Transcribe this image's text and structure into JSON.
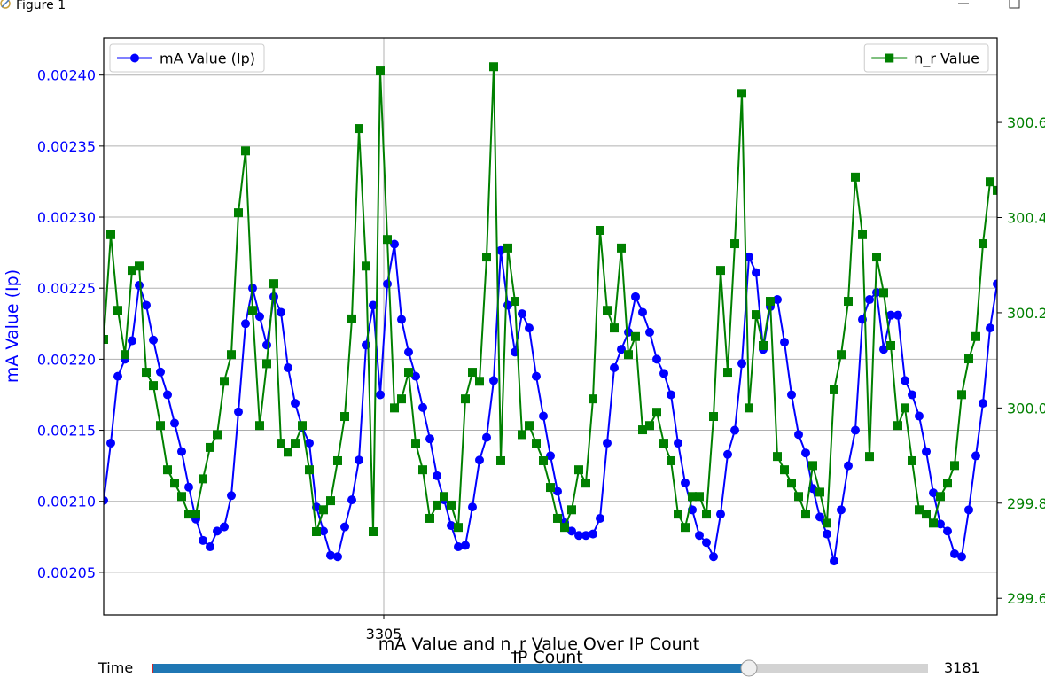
{
  "window": {
    "title": "Figure 1"
  },
  "chart_data": {
    "type": "line",
    "title": "mA Value and n_r Value Over IP Count",
    "xlabel": "IP Count",
    "ylabel": "mA Value (Ip)",
    "x": [
      3226,
      3228,
      3230,
      3232,
      3234,
      3236,
      3238,
      3240,
      3242,
      3244,
      3246,
      3248,
      3250,
      3252,
      3254,
      3256,
      3258,
      3260,
      3262,
      3264,
      3266,
      3268,
      3270,
      3272,
      3274,
      3276,
      3278,
      3280,
      3282,
      3284,
      3286,
      3288,
      3290,
      3292,
      3294,
      3296,
      3298,
      3300,
      3302,
      3304,
      3306,
      3308,
      3310,
      3312,
      3314,
      3316,
      3318,
      3320,
      3322,
      3324,
      3326,
      3328,
      3330,
      3332,
      3334,
      3336,
      3338,
      3340,
      3342,
      3344,
      3346,
      3348,
      3350,
      3352,
      3354,
      3356,
      3358,
      3360,
      3362,
      3364,
      3366,
      3368,
      3370,
      3372,
      3374,
      3376,
      3378,
      3380,
      3382,
      3384,
      3386,
      3388,
      3390,
      3392,
      3394,
      3396,
      3398,
      3400,
      3402,
      3404,
      3406,
      3408,
      3410,
      3412,
      3414,
      3416,
      3418,
      3420,
      3422,
      3424,
      3426,
      3428,
      3430,
      3432,
      3434,
      3436,
      3438,
      3440,
      3442,
      3444,
      3446,
      3448,
      3450,
      3452,
      3454,
      3456,
      3458,
      3460,
      3462,
      3464,
      3466,
      3468,
      3470,
      3472,
      3474,
      3476,
      3478
    ],
    "series": [
      {
        "name": "mA Value (Ip)",
        "color": "#0000ff",
        "marker": "circle",
        "legend": "upper left",
        "values": [
          0.0021006,
          0.002141,
          0.002188,
          0.0022,
          0.002213,
          0.002252,
          0.002238,
          0.0022135,
          0.002191,
          0.002175,
          0.002155,
          0.002135,
          0.00211,
          0.0020875,
          0.0020725,
          0.002068,
          0.002079,
          0.002082,
          0.002104,
          0.002163,
          0.002225,
          0.00225,
          0.00223,
          0.00221,
          0.002244,
          0.002233,
          0.002194,
          0.002169,
          0.002152,
          0.002141,
          0.002096,
          0.002079,
          0.002062,
          0.002061,
          0.002082,
          0.002101,
          0.002129,
          0.00221,
          0.002238,
          0.002175,
          0.002253,
          0.002281,
          0.002228,
          0.002205,
          0.002188,
          0.002166,
          0.002144,
          0.002118,
          0.002101,
          0.002083,
          0.002068,
          0.002069,
          0.002096,
          0.002129,
          0.002145,
          0.002185,
          0.0022765,
          0.002238,
          0.002205,
          0.002232,
          0.002222,
          0.002188,
          0.00216,
          0.002132,
          0.002107,
          0.002085,
          0.002079,
          0.002076,
          0.002076,
          0.002077,
          0.002088,
          0.002141,
          0.002194,
          0.002207,
          0.002219,
          0.002244,
          0.002233,
          0.002219,
          0.0022,
          0.00219,
          0.002175,
          0.002141,
          0.002113,
          0.002094,
          0.002076,
          0.002071,
          0.002061,
          0.002091,
          0.002133,
          0.00215,
          0.002197,
          0.002272,
          0.002261,
          0.002207,
          0.002237,
          0.002242,
          0.002212,
          0.002175,
          0.002147,
          0.002134,
          0.002109,
          0.002089,
          0.002077,
          0.002058,
          0.002094,
          0.002125,
          0.00215,
          0.002228,
          0.002242,
          0.002247,
          0.002207,
          0.002231,
          0.002231,
          0.002185,
          0.002175,
          0.00216,
          0.002135,
          0.002106,
          0.002084,
          0.002079,
          0.002063,
          0.002061,
          0.002094,
          0.002132,
          0.002169,
          0.002222,
          0.002253
        ]
      },
      {
        "name": "n_r Value",
        "color": "#008000",
        "marker": "square",
        "legend": "upper right",
        "axis": "y2",
        "values": [
          300.144,
          300.364,
          300.205,
          300.112,
          300.289,
          300.298,
          300.075,
          300.047,
          299.963,
          299.87,
          299.842,
          299.814,
          299.777,
          299.777,
          299.851,
          299.917,
          299.944,
          300.056,
          300.112,
          300.41,
          300.54,
          300.205,
          299.963,
          300.093,
          300.261,
          299.926,
          299.907,
          299.926,
          299.963,
          299.87,
          299.74,
          299.786,
          299.805,
          299.889,
          299.982,
          300.187,
          300.587,
          300.298,
          299.74,
          300.708,
          300.354,
          300.0,
          300.019,
          300.075,
          299.926,
          299.87,
          299.768,
          299.796,
          299.814,
          299.796,
          299.749,
          300.019,
          300.075,
          300.056,
          300.317,
          300.717,
          299.889,
          300.336,
          300.224,
          299.944,
          299.963,
          299.926,
          299.889,
          299.833,
          299.768,
          299.749,
          299.786,
          299.87,
          299.842,
          300.019,
          300.373,
          300.205,
          300.168,
          300.336,
          300.112,
          300.15,
          299.954,
          299.963,
          299.991,
          299.926,
          299.889,
          299.777,
          299.749,
          299.814,
          299.814,
          299.777,
          299.982,
          300.289,
          300.075,
          300.345,
          300.661,
          300.0,
          300.196,
          300.131,
          300.224,
          299.898,
          299.87,
          299.842,
          299.814,
          299.777,
          299.879,
          299.823,
          299.758,
          300.038,
          300.112,
          300.224,
          300.485,
          300.364,
          299.898,
          300.317,
          300.242,
          300.131,
          299.963,
          300.0,
          299.889,
          299.786,
          299.777,
          299.758,
          299.814,
          299.842,
          299.879,
          300.028,
          300.103,
          300.15,
          300.345,
          300.475,
          300.457
        ]
      }
    ],
    "xlim": [
      3226,
      3478
    ],
    "xticks": [
      3305
    ],
    "ylim": [
      0.00202,
      0.002426
    ],
    "yticks": [
      0.00205,
      {
        "value": 0.0021,
        "label": "0.00210"
      },
      0.00215,
      {
        "value": 0.0022,
        "label": "0.00220"
      },
      0.00225,
      {
        "value": 0.0023,
        "label": "0.00230"
      },
      0.00235,
      {
        "value": 0.0024,
        "label": "0.00240"
      }
    ],
    "y2lim": [
      299.565,
      300.777
    ],
    "y2ticks": [
      299.6,
      299.8,
      {
        "value": 300,
        "label": "300.0"
      },
      300.2,
      300.4,
      300.6
    ],
    "grid": true
  },
  "slider": {
    "label": "Time",
    "value": 3181
  }
}
